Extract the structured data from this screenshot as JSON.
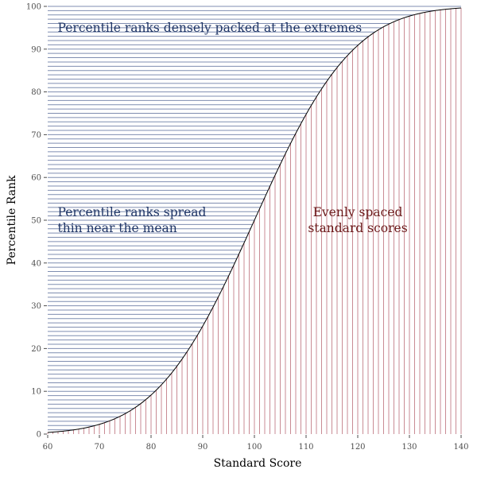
{
  "chart_data": {
    "type": "line",
    "xlabel": "Standard Score",
    "ylabel": "Percentile Rank",
    "xlim": [
      60,
      140
    ],
    "ylim": [
      0,
      100
    ],
    "x_ticks": [
      60,
      70,
      80,
      90,
      100,
      110,
      120,
      130,
      140
    ],
    "y_ticks": [
      0,
      10,
      20,
      30,
      40,
      50,
      60,
      70,
      80,
      90,
      100
    ],
    "grid": false,
    "curve": {
      "distribution": "normal",
      "mean": 100,
      "sd": 15,
      "color": "#000000"
    },
    "standard_scores": {
      "from": 60,
      "to": 140,
      "step": 1,
      "color": "#c98b94"
    },
    "percentile_ranks": {
      "from": 0,
      "to": 100,
      "step": 1,
      "color": "#7f8db0"
    },
    "annotations": [
      {
        "id": "extremes",
        "lines": [
          "Percentile ranks densely packed at the extremes"
        ],
        "x": 61,
        "y": 95,
        "anchor": "start",
        "color": "#1f3566"
      },
      {
        "id": "mean",
        "lines": [
          "Percentile ranks spread",
          "thin near the mean"
        ],
        "x": 61,
        "y": 50,
        "anchor": "start",
        "color": "#1f3566"
      },
      {
        "id": "even",
        "lines": [
          "Evenly spaced",
          "standard scores"
        ],
        "x": 120,
        "y": 50,
        "anchor": "middle",
        "color": "#6b1a1a"
      }
    ]
  }
}
